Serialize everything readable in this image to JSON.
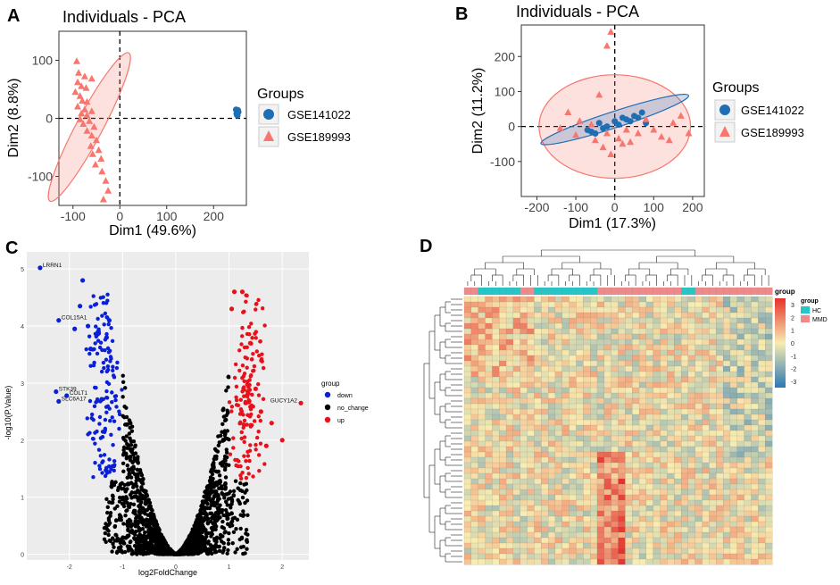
{
  "colors": {
    "gse141022": "#1f6eb4",
    "gse189993": "#f8766d",
    "down": "#0a1fd6",
    "no_change": "#000000",
    "up": "#e8101a",
    "hc": "#25c6c6",
    "mmd": "#f08a8a",
    "heat_low": "#2b78b4",
    "heat_mid": "#f8ecb0",
    "heat_high": "#e8302a"
  },
  "chart_data": [
    {
      "panel": "A",
      "type": "scatter",
      "title": "Individuals - PCA",
      "xlabel": "Dim1 (49.6%)",
      "ylabel": "Dim2 (8.8%)",
      "xlim": [
        -130,
        270
      ],
      "ylim": [
        -150,
        150
      ],
      "xticks": [
        "-100",
        "0",
        "100",
        "200"
      ],
      "xtick_values": [
        -100,
        0,
        100,
        200
      ],
      "yticks": [
        "100",
        "0",
        "-100"
      ],
      "ytick_values": [
        100,
        0,
        -100
      ],
      "legend_title": "Groups",
      "legend": [
        "GSE141022",
        "GSE189993"
      ],
      "series": [
        {
          "name": "GSE141022",
          "marker": "circle",
          "points": [
            [
              248,
              15
            ],
            [
              250,
              12
            ],
            [
              251,
              10
            ],
            [
              252,
              14
            ],
            [
              249,
              8
            ],
            [
              250,
              6
            ],
            [
              253,
              11
            ],
            [
              251,
              5
            ]
          ],
          "ellipse": {
            "cx": 250,
            "cy": 10,
            "rx": 3,
            "ry": 8,
            "angle": 0
          }
        },
        {
          "name": "GSE189993",
          "marker": "triangle",
          "points": [
            [
              -92,
              98
            ],
            [
              -88,
              78
            ],
            [
              -75,
              72
            ],
            [
              -60,
              68
            ],
            [
              -90,
              62
            ],
            [
              -82,
              55
            ],
            [
              -72,
              52
            ],
            [
              -95,
              45
            ],
            [
              -85,
              38
            ],
            [
              -80,
              30
            ],
            [
              -70,
              28
            ],
            [
              -90,
              20
            ],
            [
              -75,
              15
            ],
            [
              -60,
              12
            ],
            [
              -82,
              8
            ],
            [
              -70,
              5
            ],
            [
              -85,
              -2
            ],
            [
              -65,
              -5
            ],
            [
              -78,
              -10
            ],
            [
              -55,
              -15
            ],
            [
              -70,
              -22
            ],
            [
              -60,
              -30
            ],
            [
              -50,
              -38
            ],
            [
              -62,
              -48
            ],
            [
              -45,
              -55
            ],
            [
              -58,
              -62
            ],
            [
              -40,
              -70
            ],
            [
              -52,
              -80
            ],
            [
              -38,
              -92
            ],
            [
              -30,
              -108
            ],
            [
              -25,
              -125
            ],
            [
              -35,
              -140
            ]
          ],
          "ellipse": {
            "cx": -65,
            "cy": -15,
            "rx": 160,
            "ry": 25,
            "angle": -62
          }
        }
      ]
    },
    {
      "panel": "B",
      "type": "scatter",
      "title": "Individuals - PCA",
      "xlabel": "Dim1 (17.3%)",
      "ylabel": "Dim2 (11.2%)",
      "xlim": [
        -240,
        230
      ],
      "ylim": [
        -200,
        290
      ],
      "xticks": [
        "-200",
        "-100",
        "0",
        "100",
        "200"
      ],
      "xtick_values": [
        -200,
        -100,
        0,
        100,
        200
      ],
      "yticks": [
        "200",
        "100",
        "0",
        "-100"
      ],
      "ytick_values": [
        200,
        100,
        0,
        -100
      ],
      "legend_title": "Groups",
      "legend": [
        "GSE141022",
        "GSE189993"
      ],
      "series": [
        {
          "name": "GSE141022",
          "marker": "circle",
          "points": [
            [
              -70,
              -10
            ],
            [
              -60,
              -15
            ],
            [
              -40,
              10
            ],
            [
              -30,
              -5
            ],
            [
              0,
              15
            ],
            [
              20,
              25
            ],
            [
              30,
              20
            ],
            [
              50,
              30
            ],
            [
              70,
              40
            ],
            [
              80,
              10
            ],
            [
              10,
              5
            ],
            [
              -20,
              0
            ],
            [
              40,
              15
            ],
            [
              -50,
              -20
            ],
            [
              60,
              25
            ]
          ],
          "ellipse": {
            "cx": 0,
            "cy": 20,
            "rx": 210,
            "ry": 22,
            "angle": -18
          }
        },
        {
          "name": "GSE189993",
          "marker": "triangle",
          "points": [
            [
              -10,
              270
            ],
            [
              -20,
              230
            ],
            [
              -40,
              90
            ],
            [
              -120,
              40
            ],
            [
              -90,
              15
            ],
            [
              -100,
              -25
            ],
            [
              -50,
              -40
            ],
            [
              -30,
              -60
            ],
            [
              -10,
              -80
            ],
            [
              20,
              -50
            ],
            [
              40,
              -45
            ],
            [
              60,
              -20
            ],
            [
              80,
              20
            ],
            [
              100,
              -10
            ],
            [
              120,
              -30
            ],
            [
              140,
              -40
            ],
            [
              170,
              30
            ],
            [
              190,
              -20
            ],
            [
              -60,
              5
            ],
            [
              -20,
              -20
            ],
            [
              10,
              -35
            ],
            [
              30,
              -10
            ],
            [
              150,
              10
            ],
            [
              -140,
              -5
            ]
          ],
          "ellipse": {
            "cx": 0,
            "cy": 0,
            "rx": 205,
            "ry": 140,
            "angle": 0
          }
        }
      ]
    },
    {
      "panel": "C",
      "type": "scatter",
      "subtype": "volcano",
      "xlabel": "log2FoldChange",
      "ylabel": "-log10(P.Value)",
      "xlim": [
        -2.8,
        2.5
      ],
      "ylim": [
        -0.1,
        5.3
      ],
      "xticks": [
        "-2",
        "-1",
        "0",
        "1",
        "2"
      ],
      "xtick_values": [
        -2,
        -1,
        0,
        1,
        2
      ],
      "yticks": [
        "0",
        "1",
        "2",
        "3",
        "4",
        "5"
      ],
      "ytick_values": [
        0,
        1,
        2,
        3,
        4,
        5
      ],
      "legend_title": "group",
      "legend": [
        "down",
        "no_change",
        "up"
      ],
      "labels": [
        {
          "text": "LRRN1",
          "x": -2.55,
          "y": 5.02
        },
        {
          "text": "COL15A1",
          "x": -2.2,
          "y": 4.1
        },
        {
          "text": "STK39",
          "x": -2.25,
          "y": 2.85
        },
        {
          "text": "COLT1",
          "x": -2.05,
          "y": 2.78
        },
        {
          "text": "SLC6A17",
          "x": -2.2,
          "y": 2.68
        },
        {
          "text": "GUCY1A2",
          "x": 2.35,
          "y": 2.65
        }
      ],
      "highlight_points": {
        "down": [
          [
            -2.55,
            5.02
          ],
          [
            -2.2,
            4.1
          ],
          [
            -2.25,
            2.85
          ],
          [
            -2.05,
            2.78
          ],
          [
            -2.2,
            2.68
          ],
          [
            -1.75,
            4.8
          ],
          [
            -1.8,
            4.35
          ],
          [
            -1.65,
            4.0
          ],
          [
            -1.6,
            3.6
          ],
          [
            -1.3,
            3.8
          ],
          [
            -1.25,
            4.1
          ],
          [
            -1.9,
            3.95
          ]
        ],
        "up": [
          [
            2.35,
            2.65
          ],
          [
            1.1,
            4.6
          ],
          [
            1.05,
            4.3
          ],
          [
            1.25,
            4.6
          ],
          [
            1.4,
            3.7
          ],
          [
            1.5,
            2.9
          ],
          [
            1.8,
            2.3
          ],
          [
            2.0,
            2.0
          ],
          [
            1.6,
            2.5
          ],
          [
            1.7,
            1.9
          ]
        ]
      }
    },
    {
      "panel": "D",
      "type": "heatmap",
      "legend_title": "group",
      "group_legend": [
        "HC",
        "MMD"
      ],
      "colorbar_ticks": [
        "3",
        "2",
        "1",
        "0",
        "-1",
        "-2",
        "-3"
      ],
      "colorbar_values": [
        3,
        2,
        1,
        0,
        -1,
        -2,
        -3
      ],
      "clim": [
        -3.5,
        3.5
      ],
      "n_rows": 50,
      "n_cols": 44,
      "column_groups": [
        "MMD",
        "MMD",
        "HC",
        "HC",
        "HC",
        "HC",
        "HC",
        "HC",
        "MMD",
        "MMD",
        "HC",
        "HC",
        "HC",
        "HC",
        "HC",
        "HC",
        "HC",
        "HC",
        "HC",
        "MMD",
        "MMD",
        "MMD",
        "MMD",
        "MMD",
        "MMD",
        "MMD",
        "MMD",
        "MMD",
        "MMD",
        "MMD",
        "MMD",
        "HC",
        "HC",
        "MMD",
        "MMD",
        "MMD",
        "MMD",
        "MMD",
        "MMD",
        "MMD",
        "MMD",
        "MMD",
        "MMD",
        "MMD"
      ]
    }
  ],
  "panel_letters": {
    "a": "A",
    "b": "B",
    "c": "C",
    "d": "D"
  }
}
